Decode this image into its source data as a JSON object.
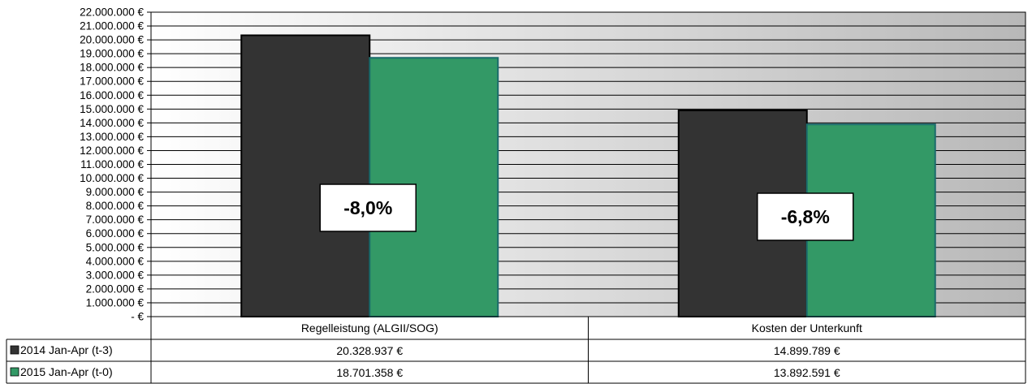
{
  "chart_data": {
    "type": "bar",
    "categories": [
      "Regelleistung (ALGII/SOG)",
      "Kosten der Unterkunft"
    ],
    "series": [
      {
        "name": "2014 Jan-Apr (t-3)",
        "values": [
          20328937,
          14899789
        ],
        "value_labels": [
          "20.328.937 €",
          "14.899.789 €"
        ],
        "color": "#333333"
      },
      {
        "name": "2015 Jan-Apr (t-0)",
        "values": [
          18701358,
          13892591
        ],
        "value_labels": [
          "18.701.358 €",
          "13.892.591 €"
        ],
        "color": "#339966"
      }
    ],
    "annotations": [
      "-8,0%",
      "-6,8%"
    ],
    "ylim": [
      0,
      22000000
    ],
    "ytick_labels": [
      "- €",
      "1.000.000 €",
      "2.000.000 €",
      "3.000.000 €",
      "4.000.000 €",
      "5.000.000 €",
      "6.000.000 €",
      "7.000.000 €",
      "8.000.000 €",
      "9.000.000 €",
      "10.000.000 €",
      "11.000.000 €",
      "12.000.000 €",
      "13.000.000 €",
      "14.000.000 €",
      "15.000.000 €",
      "16.000.000 €",
      "17.000.000 €",
      "18.000.000 €",
      "19.000.000 €",
      "20.000.000 €",
      "21.000.000 €",
      "22.000.000 €"
    ],
    "grid": true,
    "legend": "data-table",
    "title": "",
    "xlabel": "",
    "ylabel": ""
  }
}
